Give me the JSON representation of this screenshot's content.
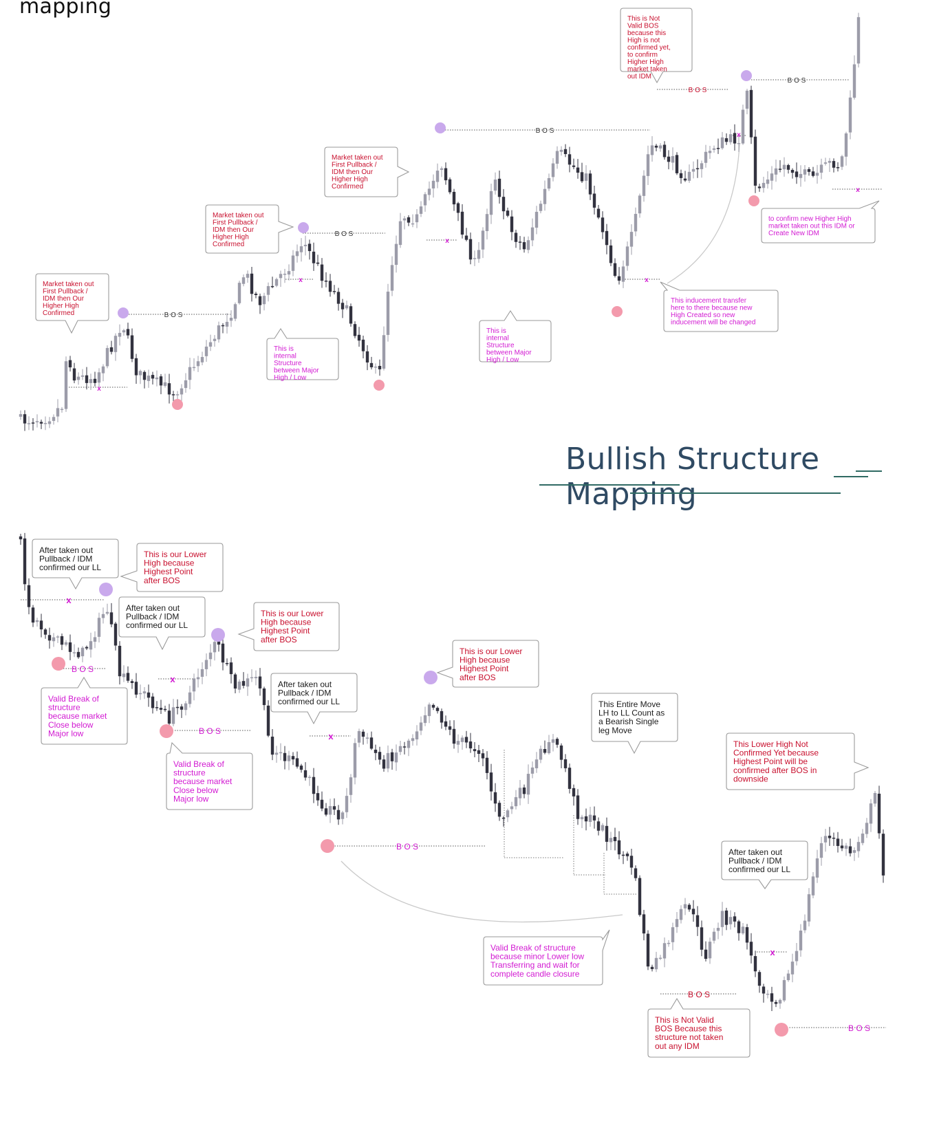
{
  "header": {
    "top_heading": "mapping",
    "section_title": "Bullish Structure Mapping"
  },
  "colors": {
    "candle_dark": "#32323f",
    "candle_light": "#9c9ca9",
    "callout_red": "#c8102e",
    "callout_magenta": "#d21ad2",
    "callout_dark": "#1b1b1b",
    "high_marker": "#c9a9ec",
    "low_marker": "#f39aac",
    "callout_border": "#9a9a9a",
    "title": "#2f4a63",
    "title_rule": "#2f6a63"
  },
  "labels": {
    "bos": "B O S",
    "idm": "x"
  },
  "bullish": {
    "callouts": [
      {
        "text": "Market taken out First Pullback / IDM then Our Higher High Confirmed",
        "color": "red"
      },
      {
        "text": "Market taken out First Pullback / IDM then Our Higher High Confirmed",
        "color": "red"
      },
      {
        "text": "Market taken out First Pullback / IDM then Our Higher High Confirmed",
        "color": "red"
      },
      {
        "text": "This is Not Valid BOS because this High is not confirmed yet, to confirm Higher High market taken out IDM",
        "color": "red"
      },
      {
        "text": "This is internal Structure between Major High / Low",
        "color": "magenta"
      },
      {
        "text": "This is internal Structure between Major High / Low",
        "color": "magenta"
      },
      {
        "text": "This inducement transfer here to there because new High Created so new inducement will be changed",
        "color": "magenta"
      },
      {
        "text": "to confirm new Higher High market taken out this IDM or Create New IDM",
        "color": "magenta"
      }
    ]
  },
  "bearish": {
    "callouts": [
      {
        "text": "After taken out Pullback / IDM confirmed our LL",
        "color": "dark"
      },
      {
        "text": "This is our Lower High because Highest Point after BOS",
        "color": "red"
      },
      {
        "text": "After taken out Pullback / IDM confirmed our LL",
        "color": "dark"
      },
      {
        "text": "This is our Lower High because Highest Point after BOS",
        "color": "red"
      },
      {
        "text": "Valid Break of structure because market Close below Major low",
        "color": "magenta"
      },
      {
        "text": "Valid Break of structure because market Close below Major low",
        "color": "magenta"
      },
      {
        "text": "After taken out Pullback / IDM confirmed our LL",
        "color": "dark"
      },
      {
        "text": "This is our Lower High because Highest Point after BOS",
        "color": "red"
      },
      {
        "text": "This Entire Move LH to LL Count as a Bearish Single leg Move",
        "color": "dark"
      },
      {
        "text": "This  Lower High Not Confirmed Yet because Highest Point will be confirmed after BOS in downside",
        "color": "red"
      },
      {
        "text": "After taken out Pullback / IDM confirmed our LL",
        "color": "dark"
      },
      {
        "text": "Valid Break of structure because minor Lower low Transferring and wait for complete candle closure",
        "color": "magenta"
      },
      {
        "text": "This is Not Valid BOS Because this structure not taken out any IDM",
        "color": "red"
      }
    ]
  }
}
